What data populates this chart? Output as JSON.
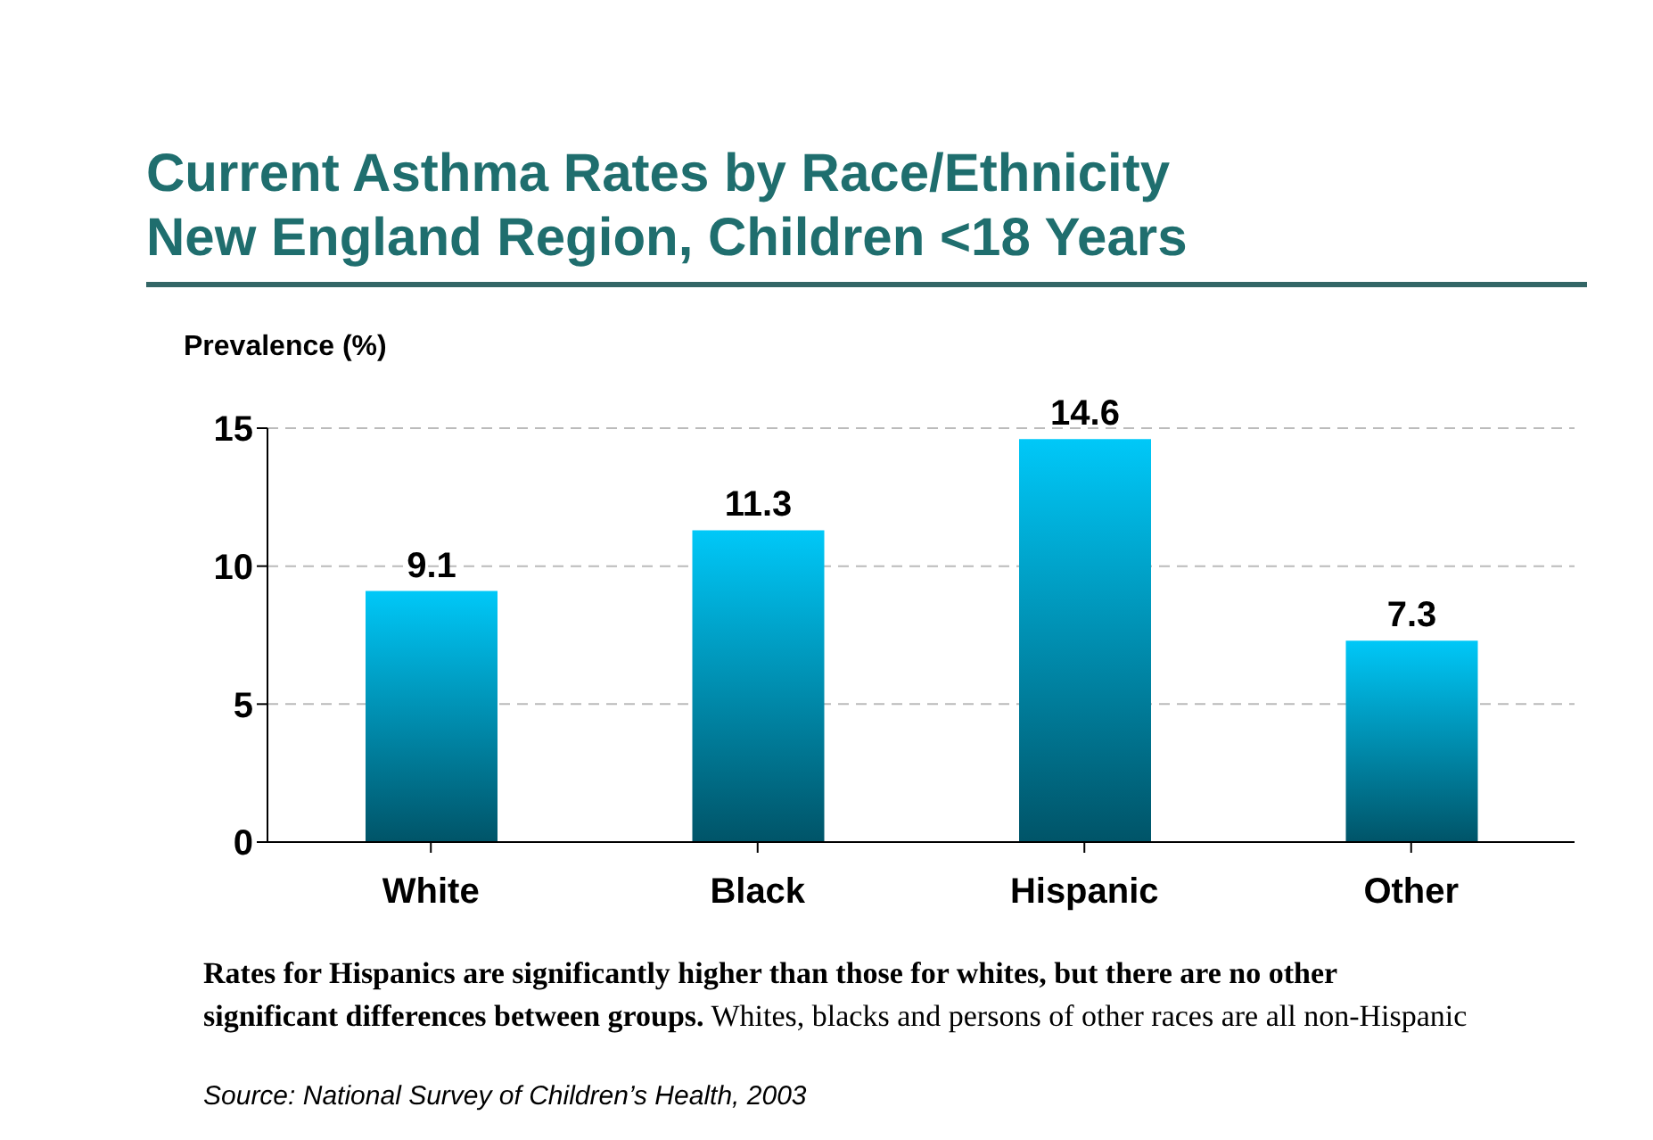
{
  "chart_data": {
    "type": "bar",
    "title": "Current Asthma Rates by Race/Ethnicity",
    "subtitle": "New England Region, Children <18 Years",
    "ylabel": "Prevalence (%)",
    "categories": [
      "White",
      "Black",
      "Hispanic",
      "Other"
    ],
    "values": [
      9.1,
      11.3,
      14.6,
      7.3
    ],
    "color": "#00c8f8",
    "ylim": [
      0,
      15
    ],
    "yticks": [
      0,
      5,
      10,
      15
    ],
    "grid": "y",
    "data_labels": true,
    "annotations": [
      "Rates for Hispanics are significantly higher than those for whites, but there are no other significant differences between groups.",
      "Whites, blacks and persons of other races are all non-Hispanic",
      "Source: National Survey of Children’s Health, 2003"
    ]
  }
}
